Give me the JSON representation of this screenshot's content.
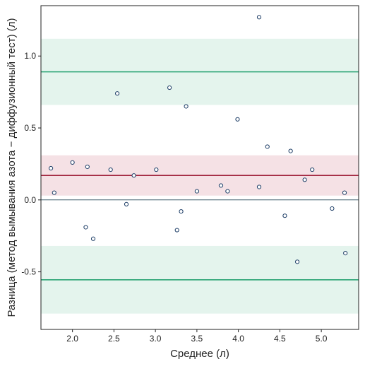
{
  "chart_data": {
    "type": "scatter",
    "title": "",
    "xlabel": "Среднее (л)",
    "ylabel": "Разница (метод вымывания азота − диффузионный тест) (л)",
    "xlim": [
      1.62,
      5.45
    ],
    "ylim": [
      -0.9,
      1.35
    ],
    "x_ticks": [
      2.0,
      2.5,
      3.0,
      3.5,
      4.0,
      4.5,
      5.0
    ],
    "y_ticks": [
      -0.5,
      0.0,
      0.5,
      1.0
    ],
    "x_tick_labels": [
      "2.0",
      "2.5",
      "3.0",
      "3.5",
      "4.0",
      "4.5",
      "5.0"
    ],
    "y_tick_labels": [
      "-0.5",
      "0.0",
      "0.5",
      "1.0"
    ],
    "grid": false,
    "legend": "none",
    "bias": {
      "value": 0.17,
      "ci": [
        0.03,
        0.31
      ],
      "color": "#a0203a",
      "band_color": "#f5e1e5"
    },
    "upper_loa": {
      "value": 0.89,
      "ci": [
        0.66,
        1.12
      ],
      "color": "#2aa374",
      "band_color": "#e4f4ed"
    },
    "lower_loa": {
      "value": -0.555,
      "ci": [
        -0.79,
        -0.32
      ],
      "color": "#2aa374",
      "band_color": "#e4f4ed"
    },
    "zero_line": {
      "value": 0.0,
      "color": "#3d5a6a"
    },
    "point_color": "#1d3d66",
    "points": [
      {
        "x": 1.74,
        "y": 0.22
      },
      {
        "x": 1.78,
        "y": 0.05
      },
      {
        "x": 2.0,
        "y": 0.26
      },
      {
        "x": 2.16,
        "y": -0.19
      },
      {
        "x": 2.18,
        "y": 0.23
      },
      {
        "x": 2.25,
        "y": -0.27
      },
      {
        "x": 2.46,
        "y": 0.21
      },
      {
        "x": 2.54,
        "y": 0.74
      },
      {
        "x": 2.65,
        "y": -0.03
      },
      {
        "x": 2.74,
        "y": 0.17
      },
      {
        "x": 3.01,
        "y": 0.21
      },
      {
        "x": 3.17,
        "y": 0.78
      },
      {
        "x": 3.26,
        "y": -0.21
      },
      {
        "x": 3.31,
        "y": -0.08
      },
      {
        "x": 3.37,
        "y": 0.65
      },
      {
        "x": 3.5,
        "y": 0.06
      },
      {
        "x": 3.79,
        "y": 0.1
      },
      {
        "x": 3.87,
        "y": 0.06
      },
      {
        "x": 3.99,
        "y": 0.56
      },
      {
        "x": 4.25,
        "y": 1.27
      },
      {
        "x": 4.25,
        "y": 0.09
      },
      {
        "x": 4.35,
        "y": 0.37
      },
      {
        "x": 4.56,
        "y": -0.11
      },
      {
        "x": 4.63,
        "y": 0.34
      },
      {
        "x": 4.71,
        "y": -0.43
      },
      {
        "x": 4.8,
        "y": 0.14
      },
      {
        "x": 4.89,
        "y": 0.21
      },
      {
        "x": 5.13,
        "y": -0.06
      },
      {
        "x": 5.28,
        "y": 0.05
      },
      {
        "x": 5.29,
        "y": -0.37
      }
    ]
  }
}
